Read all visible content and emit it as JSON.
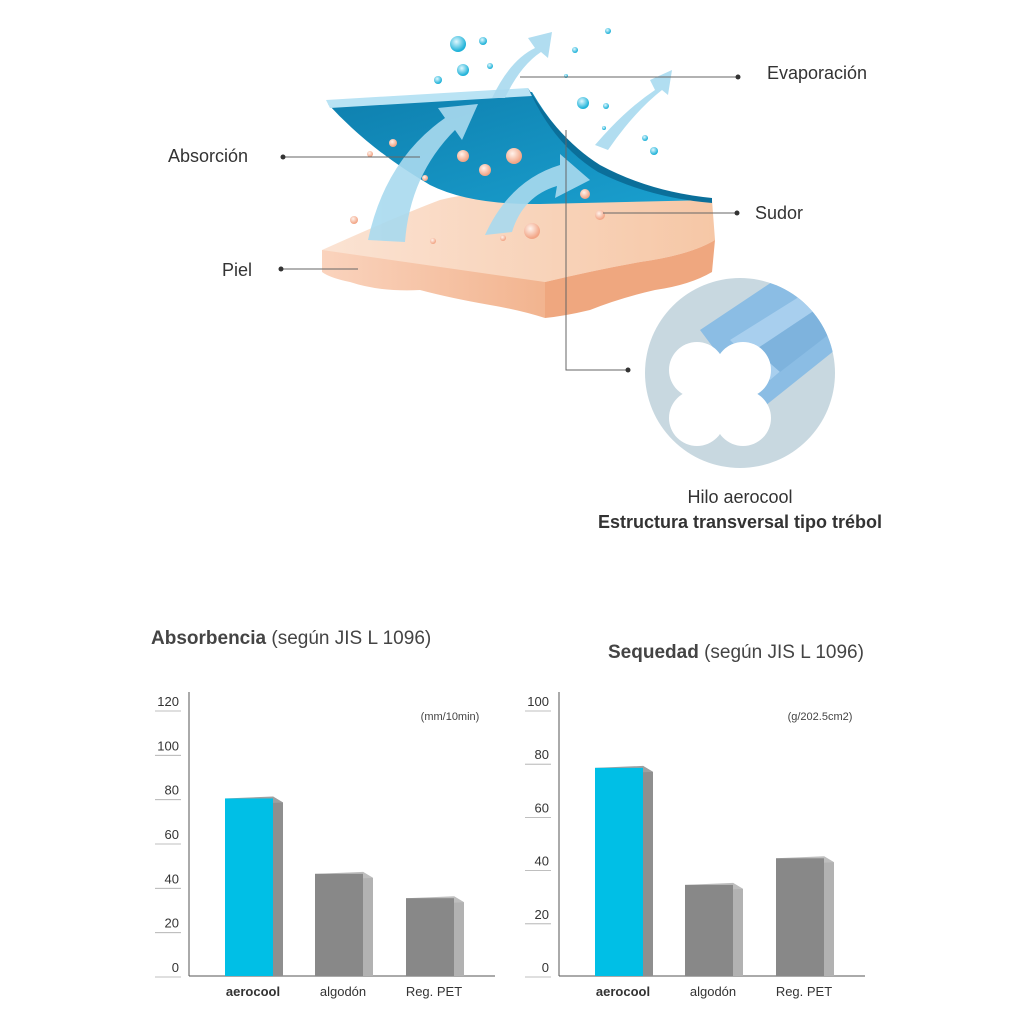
{
  "diagram": {
    "labels": {
      "evaporation": "Evaporación",
      "absorption": "Absorción",
      "sweat": "Sudor",
      "skin": "Piel"
    },
    "caption_line1": "Hilo aerocool",
    "caption_line2": "Estructura transversal tipo trébol"
  },
  "chart_data": [
    {
      "type": "bar",
      "title_bold": "Absorbencia",
      "title_rest": " (según JIS L 1096)",
      "unit": "(mm/10min)",
      "categories": [
        "aerocool",
        "algodón",
        "Reg. PET"
      ],
      "values": [
        81,
        47,
        36
      ],
      "ylim": [
        0,
        120
      ],
      "yticks": [
        "0",
        "20",
        "40",
        "60",
        "80",
        "100",
        "120"
      ],
      "colors": [
        "#00bfe6",
        "#888888",
        "#888888"
      ]
    },
    {
      "type": "bar",
      "title_bold": "Sequedad",
      "title_rest": " (según JIS L 1096)",
      "unit": "(g/202.5cm2)",
      "categories": [
        "aerocool",
        "algodón",
        "Reg. PET"
      ],
      "values": [
        79,
        35,
        45
      ],
      "ylim": [
        0,
        100
      ],
      "yticks": [
        "0",
        "20",
        "40",
        "60",
        "80",
        "100"
      ],
      "colors": [
        "#00bfe6",
        "#888888",
        "#888888"
      ]
    }
  ]
}
